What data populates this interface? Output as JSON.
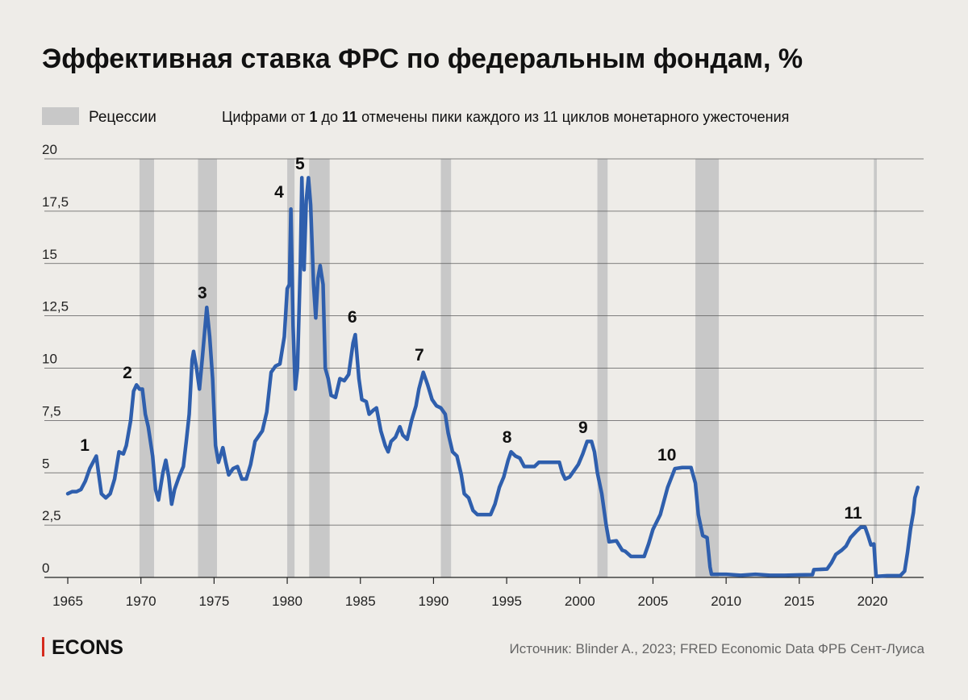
{
  "chart_data": {
    "type": "line",
    "title": "Эффективная ставка ФРС по федеральным фондам, %",
    "legend_recessions": "Рецессии",
    "note": [
      "Цифрами от ",
      "1",
      " до ",
      "11",
      " отмечены пики каждого из 11 циклов монетарного ужесточения"
    ],
    "source": "Источник: Blinder A., 2023; FRED Economic Data ФРБ Сент-Луиса",
    "brand": "ECONS",
    "color": "#2f5fad",
    "recession_color": "#c8c8c8",
    "grid": true,
    "xlim": [
      1963.4,
      2023.5
    ],
    "xticks": [
      1965,
      1970,
      1975,
      1980,
      1985,
      1990,
      1995,
      2000,
      2005,
      2010,
      2015,
      2020
    ],
    "ylim": [
      0,
      20
    ],
    "yticks": [
      0,
      {
        "value": 2.5,
        "label": "2,5"
      },
      5,
      {
        "value": 7.5,
        "label": "7,5"
      },
      10,
      {
        "value": 12.5,
        "label": "12,5"
      },
      15,
      {
        "value": 17.5,
        "label": "17,5"
      },
      20
    ],
    "recessions": [
      [
        1969.9,
        1970.9
      ],
      [
        1973.9,
        1975.2
      ],
      [
        1980.0,
        1980.5
      ],
      [
        1981.5,
        1982.9
      ],
      [
        1990.5,
        1991.2
      ],
      [
        2001.2,
        2001.9
      ],
      [
        2007.9,
        2009.5
      ],
      [
        2020.1,
        2020.3
      ]
    ],
    "annotations": [
      {
        "text": "1",
        "x": 1966.16,
        "y": 6.32
      },
      {
        "text": "2",
        "x": 1969.08,
        "y": 9.79
      },
      {
        "text": "3",
        "x": 1974.2,
        "y": 13.6
      },
      {
        "text": "4",
        "x": 1979.44,
        "y": 18.42
      },
      {
        "text": "5",
        "x": 1980.87,
        "y": 19.77
      },
      {
        "text": "6",
        "x": 1984.45,
        "y": 12.45
      },
      {
        "text": "7",
        "x": 1989.03,
        "y": 10.64
      },
      {
        "text": "8",
        "x": 1995.03,
        "y": 6.71
      },
      {
        "text": "9",
        "x": 2000.22,
        "y": 7.17
      },
      {
        "text": "10",
        "x": 2005.95,
        "y": 5.86
      },
      {
        "text": "11",
        "x": 2018.68,
        "y": 3.08
      }
    ],
    "x": [
      1965.0,
      1965.3,
      1965.6,
      1965.9,
      1966.2,
      1966.5,
      1966.8,
      1966.95,
      1967.1,
      1967.3,
      1967.6,
      1967.9,
      1968.2,
      1968.5,
      1968.8,
      1969.0,
      1969.3,
      1969.5,
      1969.7,
      1969.9,
      1970.1,
      1970.3,
      1970.5,
      1970.8,
      1971.0,
      1971.2,
      1971.5,
      1971.7,
      1971.9,
      1972.1,
      1972.3,
      1972.6,
      1972.9,
      1973.1,
      1973.3,
      1973.5,
      1973.6,
      1973.8,
      1974.0,
      1974.2,
      1974.5,
      1974.7,
      1974.9,
      1975.1,
      1975.3,
      1975.6,
      1975.8,
      1976.0,
      1976.3,
      1976.6,
      1976.9,
      1977.2,
      1977.5,
      1977.8,
      1978.0,
      1978.3,
      1978.6,
      1978.9,
      1979.2,
      1979.5,
      1979.8,
      1980.0,
      1980.15,
      1980.25,
      1980.4,
      1980.55,
      1980.7,
      1980.9,
      1981.0,
      1981.15,
      1981.3,
      1981.45,
      1981.6,
      1981.8,
      1981.95,
      1982.1,
      1982.25,
      1982.45,
      1982.6,
      1982.8,
      1983.0,
      1983.3,
      1983.6,
      1983.9,
      1984.2,
      1984.5,
      1984.65,
      1984.9,
      1985.1,
      1985.4,
      1985.6,
      1985.9,
      1986.1,
      1986.4,
      1986.7,
      1986.9,
      1987.1,
      1987.4,
      1987.7,
      1987.9,
      1988.2,
      1988.5,
      1988.8,
      1989.0,
      1989.3,
      1989.6,
      1989.9,
      1990.2,
      1990.5,
      1990.8,
      1991.0,
      1991.3,
      1991.6,
      1991.9,
      1992.1,
      1992.4,
      1992.7,
      1993.0,
      1993.3,
      1993.6,
      1993.9,
      1994.2,
      1994.5,
      1994.8,
      1995.1,
      1995.3,
      1995.6,
      1995.9,
      1996.2,
      1996.6,
      1996.9,
      1997.2,
      1997.6,
      1997.9,
      1998.2,
      1998.6,
      1998.8,
      1999.0,
      1999.3,
      1999.6,
      1999.9,
      2000.2,
      2000.5,
      2000.8,
      2001.0,
      2001.2,
      2001.5,
      2001.8,
      2002.0,
      2002.5,
      2002.9,
      2003.1,
      2003.5,
      2004.0,
      2004.4,
      2004.7,
      2005.0,
      2005.5,
      2006.0,
      2006.5,
      2007.0,
      2007.6,
      2007.9,
      2008.1,
      2008.4,
      2008.7,
      2008.9,
      2009.0,
      2010.0,
      2011.0,
      2012.0,
      2013.0,
      2014.0,
      2015.0,
      2015.9,
      2016.0,
      2016.9,
      2017.2,
      2017.5,
      2017.9,
      2018.2,
      2018.5,
      2018.9,
      2019.2,
      2019.5,
      2019.7,
      2019.9,
      2020.1,
      2020.25,
      2021.0,
      2021.9,
      2022.2,
      2022.4,
      2022.6,
      2022.8,
      2022.9,
      2023.1
    ],
    "values": [
      4.0,
      4.1,
      4.1,
      4.2,
      4.6,
      5.2,
      5.6,
      5.8,
      5.0,
      4.0,
      3.8,
      4.0,
      4.7,
      6.0,
      5.9,
      6.3,
      7.5,
      8.9,
      9.2,
      9.0,
      9.0,
      7.8,
      7.2,
      5.8,
      4.2,
      3.7,
      5.0,
      5.6,
      4.8,
      3.5,
      4.2,
      4.8,
      5.3,
      6.5,
      7.8,
      10.4,
      10.8,
      10.0,
      9.0,
      10.5,
      12.9,
      11.5,
      9.5,
      6.3,
      5.5,
      6.2,
      5.5,
      4.9,
      5.2,
      5.3,
      4.7,
      4.7,
      5.4,
      6.5,
      6.7,
      7.0,
      7.9,
      9.8,
      10.1,
      10.2,
      11.5,
      13.8,
      14.0,
      17.6,
      12.0,
      9.0,
      10.0,
      15.0,
      19.1,
      14.7,
      18.0,
      19.1,
      17.8,
      14.0,
      12.4,
      14.3,
      14.9,
      14.0,
      10.0,
      9.5,
      8.7,
      8.6,
      9.5,
      9.4,
      9.7,
      11.2,
      11.6,
      9.5,
      8.5,
      8.4,
      7.8,
      8.0,
      8.1,
      7.0,
      6.3,
      6.0,
      6.5,
      6.7,
      7.2,
      6.8,
      6.6,
      7.5,
      8.2,
      9.0,
      9.8,
      9.2,
      8.5,
      8.2,
      8.1,
      7.8,
      6.9,
      6.0,
      5.8,
      4.9,
      4.0,
      3.8,
      3.2,
      3.0,
      3.0,
      3.0,
      3.0,
      3.5,
      4.3,
      4.8,
      5.6,
      6.0,
      5.8,
      5.7,
      5.3,
      5.3,
      5.3,
      5.5,
      5.5,
      5.5,
      5.5,
      5.5,
      5.0,
      4.7,
      4.8,
      5.1,
      5.4,
      5.9,
      6.5,
      6.5,
      6.0,
      5.0,
      4.0,
      2.5,
      1.7,
      1.75,
      1.3,
      1.25,
      1.0,
      1.0,
      1.0,
      1.6,
      2.3,
      3.0,
      4.3,
      5.2,
      5.25,
      5.25,
      4.5,
      3.0,
      2.0,
      1.9,
      0.5,
      0.15,
      0.15,
      0.1,
      0.15,
      0.1,
      0.1,
      0.12,
      0.13,
      0.37,
      0.4,
      0.7,
      1.1,
      1.3,
      1.5,
      1.9,
      2.2,
      2.4,
      2.4,
      2.0,
      1.55,
      1.6,
      0.05,
      0.08,
      0.08,
      0.3,
      1.2,
      2.3,
      3.1,
      3.8,
      4.3
    ]
  }
}
